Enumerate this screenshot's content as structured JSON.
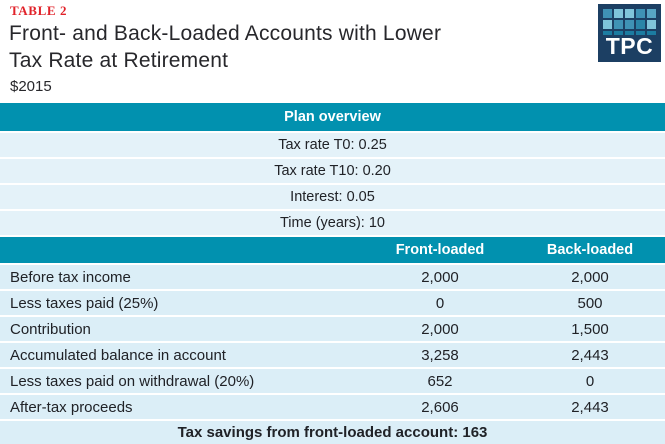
{
  "header": {
    "table_label": "TABLE 2",
    "title_line1": "Front- and Back-Loaded Accounts with Lower",
    "title_line2": "Tax Rate at Retirement",
    "subtitle": "$2015"
  },
  "logo": {
    "text": "TPC",
    "background": "#1c3f63",
    "squares": [
      [
        "#3f92b5",
        "#7fc4da",
        "#7fc4da",
        "#3f92b5",
        "#57a5c4"
      ],
      [
        "#7fc4da",
        "#3f92b5",
        "#3f92b5",
        "#2a85a8",
        "#7fc4da"
      ],
      [
        "#1c7ca1",
        "#1c7ca1",
        "#1c7ca1",
        "#1c7ca1",
        "#1c7ca1"
      ]
    ]
  },
  "colors": {
    "accent_teal": "#0191af",
    "plan_row_bg": "#e4f2f9",
    "data_row_bg": "#dbeef7",
    "table_label_red": "#e12229",
    "text_dark": "#202227"
  },
  "plan_overview": {
    "header": "Plan overview",
    "rows": [
      "Tax rate T0: 0.25",
      "Tax rate T10: 0.20",
      "Interest: 0.05",
      "Time (years): 10"
    ]
  },
  "comparison": {
    "columns": {
      "front": "Front-loaded",
      "back": "Back-loaded"
    },
    "rows": [
      {
        "label": "Before tax income",
        "front": "2,000",
        "back": "2,000"
      },
      {
        "label": "Less taxes paid (25%)",
        "front": "0",
        "back": "500"
      },
      {
        "label": "Contribution",
        "front": "2,000",
        "back": "1,500"
      },
      {
        "label": "Accumulated balance in account",
        "front": "3,258",
        "back": "2,443"
      },
      {
        "label": "Less taxes paid on withdrawal (20%)",
        "front": "652",
        "back": "0"
      },
      {
        "label": "After-tax proceeds",
        "front": "2,606",
        "back": "2,443"
      }
    ],
    "footer": "Tax savings from front-loaded account: 163"
  },
  "chart_data": {
    "type": "table",
    "title": "Front- and Back-Loaded Accounts with Lower Tax Rate at Retirement",
    "subtitle": "$2015",
    "plan_overview": {
      "Tax rate T0": 0.25,
      "Tax rate T10": 0.2,
      "Interest": 0.05,
      "Time (years)": 10
    },
    "columns": [
      "",
      "Front-loaded",
      "Back-loaded"
    ],
    "rows": [
      [
        "Before tax income",
        2000,
        2000
      ],
      [
        "Less taxes paid (25%)",
        0,
        500
      ],
      [
        "Contribution",
        2000,
        1500
      ],
      [
        "Accumulated balance in account",
        3258,
        2443
      ],
      [
        "Less taxes paid on withdrawal (20%)",
        652,
        0
      ],
      [
        "After-tax proceeds",
        2606,
        2443
      ]
    ],
    "footer_note": "Tax savings from front-loaded account: 163"
  }
}
